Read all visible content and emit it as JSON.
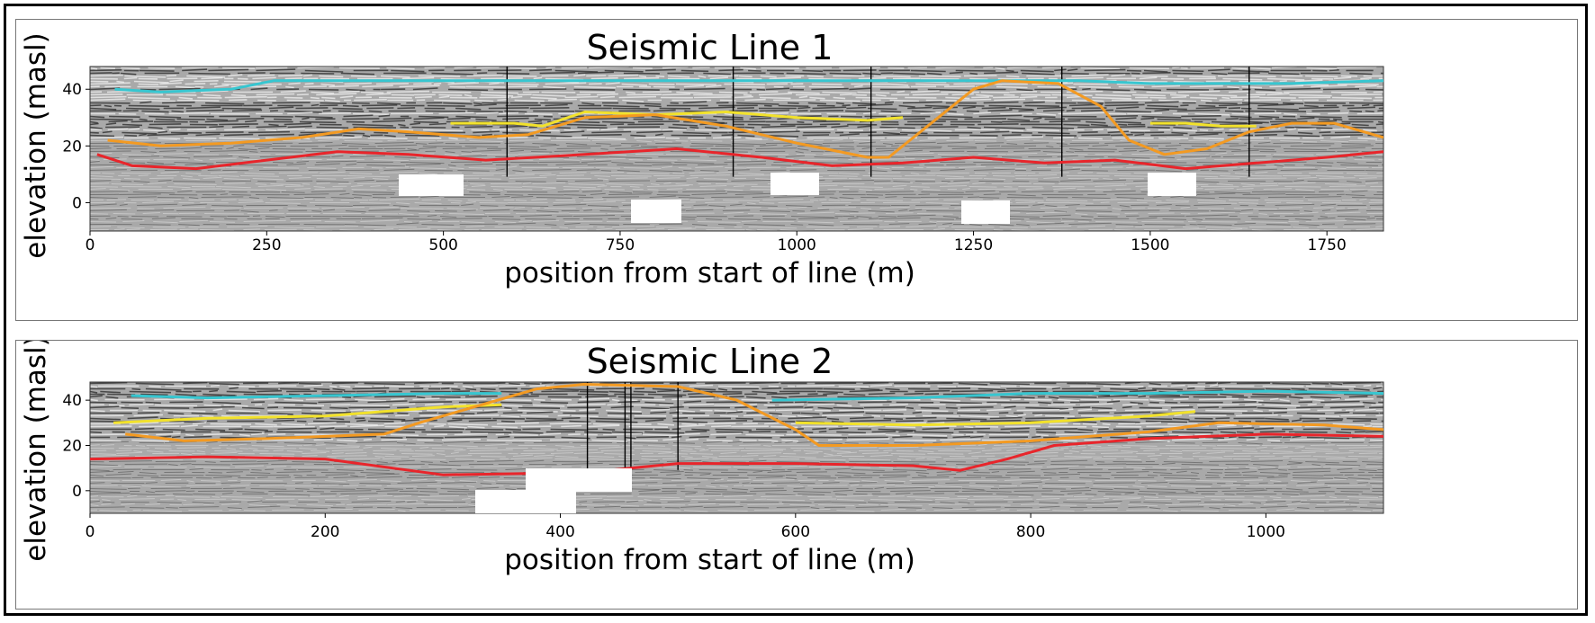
{
  "chart_data": [
    {
      "type": "line",
      "title": "Seismic Line 1",
      "xlabel": "position from start of line (m)",
      "ylabel": "elevation (masl)",
      "xlim": [
        0,
        1830
      ],
      "ylim": [
        -10,
        48
      ],
      "xticks": [
        0,
        250,
        500,
        750,
        1000,
        1250,
        1500,
        1750
      ],
      "yticks": [
        0,
        20,
        40
      ],
      "background": "seismic reflection image (grayscale)",
      "series": [
        {
          "color": "#37c6d0",
          "points": [
            [
              35,
              40
            ],
            [
              100,
              39
            ],
            [
              200,
              40
            ],
            [
              260,
              43
            ],
            [
              400,
              43
            ],
            [
              600,
              43
            ],
            [
              800,
              43
            ],
            [
              1000,
              43
            ],
            [
              1200,
              43
            ],
            [
              1400,
              43
            ],
            [
              1500,
              42
            ],
            [
              1600,
              42
            ],
            [
              1700,
              42
            ],
            [
              1830,
              43
            ]
          ]
        },
        {
          "color": "#f2e22c",
          "points": [
            [
              510,
              28
            ],
            [
              600,
              28
            ],
            [
              640,
              27
            ],
            [
              700,
              32
            ],
            [
              800,
              31
            ],
            [
              900,
              32
            ],
            [
              1000,
              30
            ],
            [
              1100,
              29
            ],
            [
              1150,
              30
            ]
          ]
        },
        {
          "color": "#f2e22c",
          "points": [
            [
              1500,
              28
            ],
            [
              1550,
              28
            ],
            [
              1600,
              27
            ],
            [
              1650,
              27
            ]
          ]
        },
        {
          "color": "#f39a22",
          "points": [
            [
              25,
              22
            ],
            [
              100,
              20
            ],
            [
              200,
              21
            ],
            [
              300,
              23
            ],
            [
              380,
              26
            ],
            [
              450,
              25
            ],
            [
              550,
              23
            ],
            [
              620,
              24
            ],
            [
              700,
              30
            ],
            [
              800,
              31
            ],
            [
              900,
              27
            ],
            [
              1000,
              21
            ],
            [
              1100,
              16
            ],
            [
              1130,
              16
            ],
            [
              1200,
              30
            ],
            [
              1250,
              40
            ],
            [
              1290,
              43
            ],
            [
              1370,
              42
            ],
            [
              1430,
              34
            ],
            [
              1470,
              22
            ],
            [
              1520,
              17
            ],
            [
              1580,
              19
            ],
            [
              1640,
              25
            ],
            [
              1700,
              28
            ],
            [
              1760,
              28
            ],
            [
              1830,
              23
            ]
          ]
        },
        {
          "color": "#e8252b",
          "points": [
            [
              10,
              17
            ],
            [
              60,
              13
            ],
            [
              150,
              12
            ],
            [
              250,
              15
            ],
            [
              350,
              18
            ],
            [
              450,
              17
            ],
            [
              560,
              15
            ],
            [
              700,
              17
            ],
            [
              830,
              19
            ],
            [
              950,
              16
            ],
            [
              1050,
              13
            ],
            [
              1150,
              14
            ],
            [
              1250,
              16
            ],
            [
              1350,
              14
            ],
            [
              1450,
              15
            ],
            [
              1550,
              12
            ],
            [
              1650,
              14
            ],
            [
              1750,
              16
            ],
            [
              1830,
              18
            ]
          ]
        }
      ],
      "vertical_lines": [
        590,
        910,
        1105,
        1375,
        1640
      ],
      "masked_labels": 6
    },
    {
      "type": "line",
      "title": "Seismic Line 2",
      "xlabel": "position from start of line (m)",
      "ylabel": "elevation (masl)",
      "xlim": [
        0,
        1100
      ],
      "ylim": [
        -10,
        48
      ],
      "xticks": [
        0,
        200,
        400,
        600,
        800,
        1000
      ],
      "yticks": [
        0,
        20,
        40
      ],
      "background": "seismic reflection image (grayscale)",
      "series": [
        {
          "color": "#37c6d0",
          "points": [
            [
              35,
              42
            ],
            [
              100,
              41
            ],
            [
              200,
              42
            ],
            [
              300,
              43
            ],
            [
              350,
              43
            ]
          ]
        },
        {
          "color": "#37c6d0",
          "points": [
            [
              580,
              40
            ],
            [
              700,
              41
            ],
            [
              800,
              43
            ],
            [
              900,
              43
            ],
            [
              1000,
              44
            ],
            [
              1100,
              43
            ]
          ]
        },
        {
          "color": "#f2e22c",
          "points": [
            [
              20,
              30
            ],
            [
              100,
              32
            ],
            [
              200,
              33
            ],
            [
              250,
              35
            ],
            [
              300,
              37
            ],
            [
              350,
              38
            ]
          ]
        },
        {
          "color": "#f2e22c",
          "points": [
            [
              600,
              30
            ],
            [
              700,
              29
            ],
            [
              800,
              30
            ],
            [
              900,
              33
            ],
            [
              940,
              35
            ]
          ]
        },
        {
          "color": "#f39a22",
          "points": [
            [
              30,
              25
            ],
            [
              80,
              22
            ],
            [
              150,
              23
            ],
            [
              250,
              25
            ],
            [
              280,
              30
            ],
            [
              320,
              36
            ],
            [
              380,
              45
            ],
            [
              420,
              47
            ],
            [
              500,
              46
            ],
            [
              550,
              40
            ],
            [
              600,
              27
            ],
            [
              620,
              20
            ],
            [
              700,
              20
            ],
            [
              800,
              22
            ],
            [
              900,
              26
            ],
            [
              960,
              30
            ],
            [
              1050,
              29
            ],
            [
              1100,
              27
            ]
          ]
        },
        {
          "color": "#e8252b",
          "points": [
            [
              0,
              14
            ],
            [
              100,
              15
            ],
            [
              200,
              14
            ],
            [
              300,
              7
            ],
            [
              420,
              8
            ],
            [
              500,
              12
            ],
            [
              600,
              12
            ],
            [
              700,
              11
            ],
            [
              740,
              9
            ],
            [
              780,
              14
            ],
            [
              820,
              20
            ],
            [
              900,
              23
            ],
            [
              1000,
              25
            ],
            [
              1100,
              24
            ]
          ]
        }
      ],
      "vertical_lines": [
        423,
        455,
        460,
        500
      ],
      "masked_labels": 2
    }
  ]
}
